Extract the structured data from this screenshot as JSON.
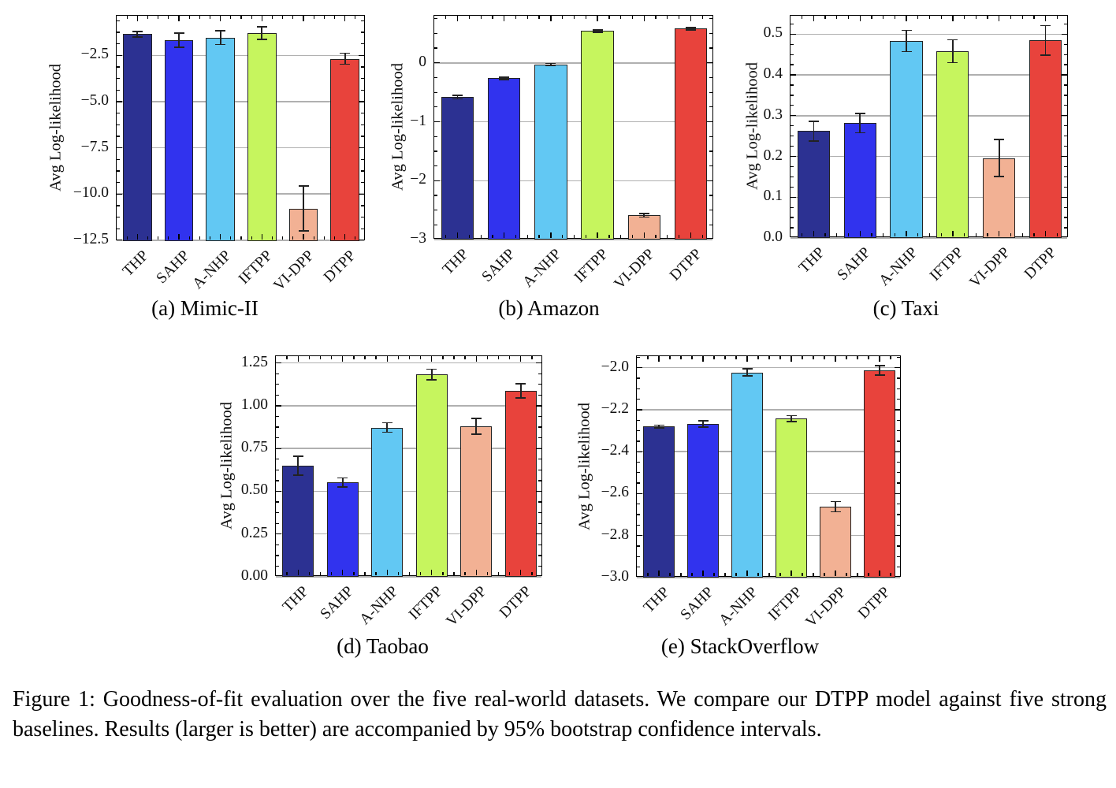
{
  "figure": {
    "caption": "Figure 1: Goodness-of-fit evaluation over the five real-world datasets. We compare our DTPP model against five strong baselines. Results (larger is better) are accompanied by 95% bootstrap confidence intervals."
  },
  "style": {
    "bar_colors": [
      "#2c3192",
      "#3133ee",
      "#62c8f3",
      "#c6f55e",
      "#f2b194",
      "#e8433c"
    ],
    "bar_edge": "#222222",
    "grid_color": "#b0b0b0",
    "axis_color": "#000000",
    "error_color": "#222222"
  },
  "models": [
    "THP",
    "SAHP",
    "A-NHP",
    "IFTPP",
    "VI-DPP",
    "DTPP"
  ],
  "chart_data": [
    {
      "type": "bar",
      "id": "mimic-ii",
      "dataset": "Mimic-II",
      "subcaption": "(a) Mimic-II",
      "ylabel": "Avg Log-likelihood",
      "categories": [
        "THP",
        "SAHP",
        "A-NHP",
        "IFTPP",
        "VI-DPP",
        "DTPP"
      ],
      "values": [
        -1.35,
        -1.67,
        -1.53,
        -1.28,
        -10.78,
        -2.68
      ],
      "errors": [
        0.16,
        0.38,
        0.38,
        0.34,
        1.22,
        0.3
      ],
      "yticks": [
        -2.5,
        -5.0,
        -7.5,
        -10.0,
        -12.5
      ],
      "ytick_labels": [
        "−2.5",
        "−5.0",
        "−7.5",
        "−10.0",
        "−12.5"
      ],
      "ylim": [
        -12.55,
        -0.35
      ],
      "grid": true,
      "legend": false
    },
    {
      "type": "bar",
      "id": "amazon",
      "dataset": "Amazon",
      "subcaption": "(b) Amazon",
      "ylabel": "Avg Log-likelihood",
      "categories": [
        "THP",
        "SAHP",
        "A-NHP",
        "IFTPP",
        "VI-DPP",
        "DTPP"
      ],
      "values": [
        -0.58,
        -0.26,
        -0.03,
        0.54,
        -2.59,
        0.58
      ],
      "errors": [
        0.03,
        0.02,
        0.02,
        0.02,
        0.03,
        0.02
      ],
      "yticks": [
        0,
        -1,
        -2,
        -3
      ],
      "ytick_labels": [
        "0",
        "−1",
        "−2",
        "−3"
      ],
      "ylim": [
        -3.0,
        0.8
      ],
      "grid": true,
      "legend": false
    },
    {
      "type": "bar",
      "id": "taxi",
      "dataset": "Taxi",
      "subcaption": "(c) Taxi",
      "ylabel": "Avg Log-likelihood",
      "categories": [
        "THP",
        "SAHP",
        "A-NHP",
        "IFTPP",
        "VI-DPP",
        "DTPP"
      ],
      "values": [
        0.262,
        0.282,
        0.483,
        0.458,
        0.196,
        0.485
      ],
      "errors": [
        0.024,
        0.024,
        0.026,
        0.028,
        0.045,
        0.036
      ],
      "yticks": [
        0.5,
        0.4,
        0.3,
        0.2,
        0.1,
        0.0
      ],
      "ytick_labels": [
        "0.5",
        "0.4",
        "0.3",
        "0.2",
        "0.1",
        "0.0"
      ],
      "ylim": [
        0,
        0.545
      ],
      "grid": true,
      "legend": false
    },
    {
      "type": "bar",
      "id": "taobao",
      "dataset": "Taobao",
      "subcaption": "(d) Taobao",
      "ylabel": "Avg Log-likelihood",
      "categories": [
        "THP",
        "SAHP",
        "A-NHP",
        "IFTPP",
        "VI-DPP",
        "DTPP"
      ],
      "values": [
        0.65,
        0.552,
        0.873,
        1.183,
        0.879,
        1.088
      ],
      "errors": [
        0.055,
        0.026,
        0.028,
        0.031,
        0.046,
        0.042
      ],
      "yticks": [
        1.25,
        1.0,
        0.75,
        0.5,
        0.25,
        0.0
      ],
      "ytick_labels": [
        "1.25",
        "1.00",
        "0.75",
        "0.50",
        "0.25",
        "0.00"
      ],
      "ylim": [
        0,
        1.29
      ],
      "grid": true,
      "legend": false
    },
    {
      "type": "bar",
      "id": "stackoverflow",
      "dataset": "StackOverflow",
      "subcaption": "(e) StackOverflow",
      "ylabel": "Avg Log-likelihood",
      "categories": [
        "THP",
        "SAHP",
        "A-NHP",
        "IFTPP",
        "VI-DPP",
        "DTPP"
      ],
      "values": [
        -2.28,
        -2.268,
        -2.022,
        -2.243,
        -2.662,
        -2.012
      ],
      "errors": [
        0.006,
        0.014,
        0.018,
        0.014,
        0.024,
        0.022
      ],
      "yticks": [
        -2.0,
        -2.2,
        -2.4,
        -2.6,
        -2.8,
        -3.0
      ],
      "ytick_labels": [
        "−2.0",
        "−2.2",
        "−2.4",
        "−2.6",
        "−2.8",
        "−3.0"
      ],
      "ylim": [
        -3.0,
        -1.945
      ],
      "grid": true,
      "legend": false
    }
  ]
}
